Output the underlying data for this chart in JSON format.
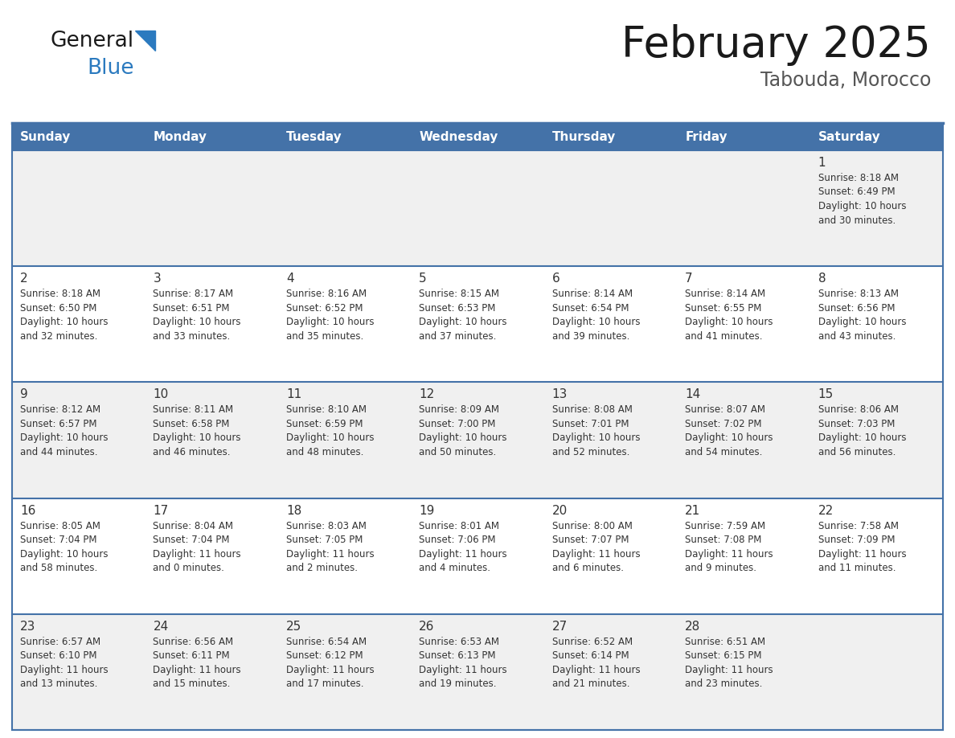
{
  "title": "February 2025",
  "subtitle": "Tabouda, Morocco",
  "days_of_week": [
    "Sunday",
    "Monday",
    "Tuesday",
    "Wednesday",
    "Thursday",
    "Friday",
    "Saturday"
  ],
  "header_bg": "#4472a8",
  "header_text": "#ffffff",
  "row_bg_light": "#f0f0f0",
  "row_bg_white": "#ffffff",
  "text_color": "#333333",
  "border_color": "#4472a8",
  "title_color": "#1a1a1a",
  "subtitle_color": "#555555",
  "logo_general_color": "#1a1a1a",
  "logo_blue_color": "#2b7abf",
  "calendar_data": [
    [
      {
        "day": null,
        "info": null
      },
      {
        "day": null,
        "info": null
      },
      {
        "day": null,
        "info": null
      },
      {
        "day": null,
        "info": null
      },
      {
        "day": null,
        "info": null
      },
      {
        "day": null,
        "info": null
      },
      {
        "day": 1,
        "info": "Sunrise: 8:18 AM\nSunset: 6:49 PM\nDaylight: 10 hours\nand 30 minutes."
      }
    ],
    [
      {
        "day": 2,
        "info": "Sunrise: 8:18 AM\nSunset: 6:50 PM\nDaylight: 10 hours\nand 32 minutes."
      },
      {
        "day": 3,
        "info": "Sunrise: 8:17 AM\nSunset: 6:51 PM\nDaylight: 10 hours\nand 33 minutes."
      },
      {
        "day": 4,
        "info": "Sunrise: 8:16 AM\nSunset: 6:52 PM\nDaylight: 10 hours\nand 35 minutes."
      },
      {
        "day": 5,
        "info": "Sunrise: 8:15 AM\nSunset: 6:53 PM\nDaylight: 10 hours\nand 37 minutes."
      },
      {
        "day": 6,
        "info": "Sunrise: 8:14 AM\nSunset: 6:54 PM\nDaylight: 10 hours\nand 39 minutes."
      },
      {
        "day": 7,
        "info": "Sunrise: 8:14 AM\nSunset: 6:55 PM\nDaylight: 10 hours\nand 41 minutes."
      },
      {
        "day": 8,
        "info": "Sunrise: 8:13 AM\nSunset: 6:56 PM\nDaylight: 10 hours\nand 43 minutes."
      }
    ],
    [
      {
        "day": 9,
        "info": "Sunrise: 8:12 AM\nSunset: 6:57 PM\nDaylight: 10 hours\nand 44 minutes."
      },
      {
        "day": 10,
        "info": "Sunrise: 8:11 AM\nSunset: 6:58 PM\nDaylight: 10 hours\nand 46 minutes."
      },
      {
        "day": 11,
        "info": "Sunrise: 8:10 AM\nSunset: 6:59 PM\nDaylight: 10 hours\nand 48 minutes."
      },
      {
        "day": 12,
        "info": "Sunrise: 8:09 AM\nSunset: 7:00 PM\nDaylight: 10 hours\nand 50 minutes."
      },
      {
        "day": 13,
        "info": "Sunrise: 8:08 AM\nSunset: 7:01 PM\nDaylight: 10 hours\nand 52 minutes."
      },
      {
        "day": 14,
        "info": "Sunrise: 8:07 AM\nSunset: 7:02 PM\nDaylight: 10 hours\nand 54 minutes."
      },
      {
        "day": 15,
        "info": "Sunrise: 8:06 AM\nSunset: 7:03 PM\nDaylight: 10 hours\nand 56 minutes."
      }
    ],
    [
      {
        "day": 16,
        "info": "Sunrise: 8:05 AM\nSunset: 7:04 PM\nDaylight: 10 hours\nand 58 minutes."
      },
      {
        "day": 17,
        "info": "Sunrise: 8:04 AM\nSunset: 7:04 PM\nDaylight: 11 hours\nand 0 minutes."
      },
      {
        "day": 18,
        "info": "Sunrise: 8:03 AM\nSunset: 7:05 PM\nDaylight: 11 hours\nand 2 minutes."
      },
      {
        "day": 19,
        "info": "Sunrise: 8:01 AM\nSunset: 7:06 PM\nDaylight: 11 hours\nand 4 minutes."
      },
      {
        "day": 20,
        "info": "Sunrise: 8:00 AM\nSunset: 7:07 PM\nDaylight: 11 hours\nand 6 minutes."
      },
      {
        "day": 21,
        "info": "Sunrise: 7:59 AM\nSunset: 7:08 PM\nDaylight: 11 hours\nand 9 minutes."
      },
      {
        "day": 22,
        "info": "Sunrise: 7:58 AM\nSunset: 7:09 PM\nDaylight: 11 hours\nand 11 minutes."
      }
    ],
    [
      {
        "day": 23,
        "info": "Sunrise: 6:57 AM\nSunset: 6:10 PM\nDaylight: 11 hours\nand 13 minutes."
      },
      {
        "day": 24,
        "info": "Sunrise: 6:56 AM\nSunset: 6:11 PM\nDaylight: 11 hours\nand 15 minutes."
      },
      {
        "day": 25,
        "info": "Sunrise: 6:54 AM\nSunset: 6:12 PM\nDaylight: 11 hours\nand 17 minutes."
      },
      {
        "day": 26,
        "info": "Sunrise: 6:53 AM\nSunset: 6:13 PM\nDaylight: 11 hours\nand 19 minutes."
      },
      {
        "day": 27,
        "info": "Sunrise: 6:52 AM\nSunset: 6:14 PM\nDaylight: 11 hours\nand 21 minutes."
      },
      {
        "day": 28,
        "info": "Sunrise: 6:51 AM\nSunset: 6:15 PM\nDaylight: 11 hours\nand 23 minutes."
      },
      {
        "day": null,
        "info": null
      }
    ]
  ]
}
